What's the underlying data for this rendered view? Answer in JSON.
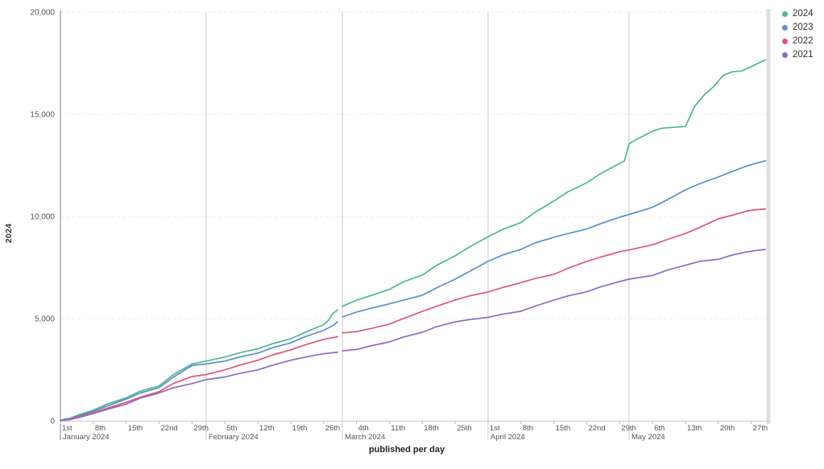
{
  "chart_data": {
    "type": "line",
    "title": "",
    "xlabel": "published per day",
    "ylabel": "2024",
    "ylim": [
      0,
      20000
    ],
    "x_total_days": 151,
    "grid": "horizontal-dashed",
    "legend_position": "top-right",
    "y_ticks": [
      {
        "v": 0,
        "label": "0"
      },
      {
        "v": 5000,
        "label": "5,000"
      },
      {
        "v": 10000,
        "label": "10,000"
      },
      {
        "v": 15000,
        "label": "15,000"
      },
      {
        "v": 20000,
        "label": "20,000"
      }
    ],
    "day_ticks": [
      {
        "day": 0,
        "label": "1st"
      },
      {
        "day": 7,
        "label": "8th"
      },
      {
        "day": 14,
        "label": "15th"
      },
      {
        "day": 21,
        "label": "22nd"
      },
      {
        "day": 28,
        "label": "29th"
      },
      {
        "day": 35,
        "label": "5th"
      },
      {
        "day": 42,
        "label": "12th"
      },
      {
        "day": 49,
        "label": "19th"
      },
      {
        "day": 56,
        "label": "26th"
      },
      {
        "day": 63,
        "label": "4th"
      },
      {
        "day": 70,
        "label": "11th"
      },
      {
        "day": 77,
        "label": "18th"
      },
      {
        "day": 84,
        "label": "25th"
      },
      {
        "day": 91,
        "label": "1st"
      },
      {
        "day": 98,
        "label": "8th"
      },
      {
        "day": 105,
        "label": "15th"
      },
      {
        "day": 112,
        "label": "22nd"
      },
      {
        "day": 119,
        "label": "29th"
      },
      {
        "day": 126,
        "label": "6th"
      },
      {
        "day": 133,
        "label": "13th"
      },
      {
        "day": 140,
        "label": "20th"
      },
      {
        "day": 147,
        "label": "27th"
      }
    ],
    "months": [
      {
        "day": 0,
        "label": "January 2024"
      },
      {
        "day": 31,
        "label": "February 2024"
      },
      {
        "day": 60,
        "label": "March 2024"
      },
      {
        "day": 91,
        "label": "April 2024"
      },
      {
        "day": 121,
        "label": "May 2024"
      }
    ],
    "month_gridline_days": [
      31,
      60,
      91,
      121
    ],
    "colors": {
      "grid": "#ececec",
      "month_line": "#cccccc",
      "axis_line": "#9a9a9a",
      "baseline": "#c9c9c9",
      "tick": "#bbbbbb",
      "tick_text": "#555555",
      "right_bar": "#e0e0e0"
    },
    "series": [
      {
        "name": "2024",
        "color": "#4fb694",
        "points": [
          [
            0,
            30
          ],
          [
            2,
            120
          ],
          [
            4,
            300
          ],
          [
            7,
            520
          ],
          [
            10,
            820
          ],
          [
            14,
            1120
          ],
          [
            17,
            1450
          ],
          [
            21,
            1700
          ],
          [
            24,
            2250
          ],
          [
            28,
            2780
          ],
          [
            31,
            2920
          ],
          [
            35,
            3120
          ],
          [
            38,
            3320
          ],
          [
            42,
            3520
          ],
          [
            45,
            3760
          ],
          [
            49,
            4010
          ],
          [
            52,
            4320
          ],
          [
            56,
            4700
          ],
          [
            57,
            4900
          ],
          [
            58,
            5250
          ],
          [
            59,
            5430
          ],
          null,
          [
            60,
            5600
          ],
          [
            63,
            5900
          ],
          [
            66,
            6120
          ],
          [
            70,
            6430
          ],
          [
            73,
            6800
          ],
          [
            77,
            7130
          ],
          [
            80,
            7600
          ],
          [
            84,
            8070
          ],
          [
            87,
            8500
          ],
          [
            91,
            9000
          ],
          [
            94,
            9350
          ],
          [
            98,
            9700
          ],
          [
            101,
            10200
          ],
          [
            105,
            10750
          ],
          [
            108,
            11200
          ],
          [
            112,
            11650
          ],
          [
            115,
            12100
          ],
          [
            119,
            12600
          ],
          [
            120,
            12700
          ],
          [
            121,
            13550
          ],
          [
            123,
            13820
          ],
          [
            126,
            14170
          ],
          [
            128,
            14320
          ],
          [
            133,
            14400
          ],
          [
            134,
            14900
          ],
          [
            135,
            15400
          ],
          [
            137,
            15950
          ],
          [
            139,
            16350
          ],
          [
            141,
            16900
          ],
          [
            143,
            17080
          ],
          [
            145,
            17120
          ],
          [
            147,
            17330
          ],
          [
            149,
            17550
          ],
          [
            150,
            17660
          ]
        ]
      },
      {
        "name": "2023",
        "color": "#5b8fc8",
        "points": [
          [
            0,
            20
          ],
          [
            2,
            100
          ],
          [
            4,
            260
          ],
          [
            7,
            460
          ],
          [
            10,
            720
          ],
          [
            14,
            1060
          ],
          [
            17,
            1360
          ],
          [
            21,
            1620
          ],
          [
            24,
            2130
          ],
          [
            28,
            2700
          ],
          [
            31,
            2780
          ],
          [
            35,
            2920
          ],
          [
            38,
            3110
          ],
          [
            42,
            3310
          ],
          [
            45,
            3560
          ],
          [
            49,
            3810
          ],
          [
            52,
            4110
          ],
          [
            56,
            4420
          ],
          [
            58,
            4660
          ],
          [
            59,
            4840
          ],
          null,
          [
            60,
            5080
          ],
          [
            63,
            5320
          ],
          [
            66,
            5500
          ],
          [
            70,
            5720
          ],
          [
            73,
            5900
          ],
          [
            77,
            6140
          ],
          [
            80,
            6500
          ],
          [
            84,
            6930
          ],
          [
            87,
            7300
          ],
          [
            91,
            7800
          ],
          [
            94,
            8100
          ],
          [
            98,
            8390
          ],
          [
            101,
            8700
          ],
          [
            105,
            8980
          ],
          [
            108,
            9160
          ],
          [
            112,
            9380
          ],
          [
            115,
            9650
          ],
          [
            119,
            9960
          ],
          [
            121,
            10100
          ],
          [
            124,
            10300
          ],
          [
            126,
            10450
          ],
          [
            129,
            10800
          ],
          [
            133,
            11300
          ],
          [
            136,
            11600
          ],
          [
            140,
            11930
          ],
          [
            143,
            12200
          ],
          [
            146,
            12460
          ],
          [
            148,
            12600
          ],
          [
            150,
            12720
          ]
        ]
      },
      {
        "name": "2022",
        "color": "#dd5677",
        "points": [
          [
            0,
            15
          ],
          [
            2,
            80
          ],
          [
            4,
            200
          ],
          [
            7,
            400
          ],
          [
            10,
            610
          ],
          [
            14,
            900
          ],
          [
            17,
            1150
          ],
          [
            21,
            1420
          ],
          [
            24,
            1820
          ],
          [
            28,
            2160
          ],
          [
            31,
            2260
          ],
          [
            35,
            2490
          ],
          [
            38,
            2710
          ],
          [
            42,
            2960
          ],
          [
            45,
            3210
          ],
          [
            49,
            3470
          ],
          [
            52,
            3710
          ],
          [
            56,
            3980
          ],
          [
            59,
            4110
          ],
          null,
          [
            60,
            4300
          ],
          [
            63,
            4360
          ],
          [
            66,
            4510
          ],
          [
            70,
            4730
          ],
          [
            73,
            5000
          ],
          [
            77,
            5350
          ],
          [
            80,
            5600
          ],
          [
            84,
            5910
          ],
          [
            87,
            6110
          ],
          [
            91,
            6300
          ],
          [
            94,
            6510
          ],
          [
            98,
            6760
          ],
          [
            101,
            6960
          ],
          [
            105,
            7160
          ],
          [
            108,
            7460
          ],
          [
            112,
            7800
          ],
          [
            115,
            8010
          ],
          [
            119,
            8270
          ],
          [
            121,
            8360
          ],
          [
            126,
            8610
          ],
          [
            129,
            8860
          ],
          [
            133,
            9160
          ],
          [
            136,
            9460
          ],
          [
            140,
            9880
          ],
          [
            143,
            10060
          ],
          [
            146,
            10260
          ],
          [
            148,
            10330
          ],
          [
            150,
            10360
          ]
        ]
      },
      {
        "name": "2021",
        "color": "#8f6bbd",
        "points": [
          [
            0,
            10
          ],
          [
            2,
            60
          ],
          [
            4,
            160
          ],
          [
            7,
            350
          ],
          [
            10,
            560
          ],
          [
            14,
            810
          ],
          [
            17,
            1110
          ],
          [
            21,
            1360
          ],
          [
            24,
            1610
          ],
          [
            28,
            1820
          ],
          [
            31,
            2010
          ],
          [
            35,
            2140
          ],
          [
            38,
            2310
          ],
          [
            42,
            2490
          ],
          [
            45,
            2710
          ],
          [
            49,
            2960
          ],
          [
            52,
            3110
          ],
          [
            56,
            3280
          ],
          [
            59,
            3350
          ],
          null,
          [
            60,
            3420
          ],
          [
            63,
            3490
          ],
          [
            66,
            3660
          ],
          [
            70,
            3860
          ],
          [
            73,
            4100
          ],
          [
            77,
            4330
          ],
          [
            80,
            4600
          ],
          [
            84,
            4840
          ],
          [
            87,
            4950
          ],
          [
            91,
            5060
          ],
          [
            94,
            5210
          ],
          [
            98,
            5360
          ],
          [
            101,
            5610
          ],
          [
            105,
            5900
          ],
          [
            108,
            6110
          ],
          [
            112,
            6310
          ],
          [
            115,
            6560
          ],
          [
            119,
            6810
          ],
          [
            121,
            6930
          ],
          [
            126,
            7110
          ],
          [
            129,
            7360
          ],
          [
            133,
            7610
          ],
          [
            136,
            7800
          ],
          [
            140,
            7900
          ],
          [
            143,
            8110
          ],
          [
            146,
            8260
          ],
          [
            148,
            8330
          ],
          [
            150,
            8380
          ]
        ]
      }
    ]
  }
}
